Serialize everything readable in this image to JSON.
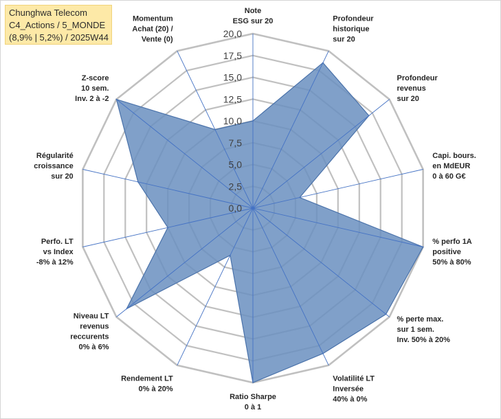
{
  "chart_data": {
    "type": "radar",
    "title_lines": [
      "Chunghwa Telecom",
      "C4_Actions / 5_MONDE",
      "(8,9% | 5,2%) / 2025W44"
    ],
    "rlim": [
      0,
      20
    ],
    "ticks": [
      "0,0",
      "2,5",
      "5,0",
      "7,5",
      "10,0",
      "12,5",
      "15,0",
      "17,5",
      "20,0"
    ],
    "axes": [
      {
        "label": [
          "Note",
          "ESG sur 20"
        ]
      },
      {
        "label": [
          "Profondeur",
          "historique",
          "sur 20"
        ]
      },
      {
        "label": [
          "Profondeur",
          "revenus",
          "sur 20"
        ]
      },
      {
        "label": [
          "Capi. bours.",
          "en MdEUR",
          "0 à 60 G€"
        ]
      },
      {
        "label": [
          "% perfo 1A",
          "positive",
          "50% à 80%"
        ]
      },
      {
        "label": [
          "% perte max.",
          "sur 1 sem.",
          "Inv. 50% à 20%"
        ]
      },
      {
        "label": [
          "Volatilité LT",
          "Inversée",
          "40% à 0%"
        ]
      },
      {
        "label": [
          "Ratio Sharpe",
          "0 à 1"
        ]
      },
      {
        "label": [
          "Rendement LT",
          "0% à 20%"
        ]
      },
      {
        "label": [
          "Niveau LT",
          "revenus",
          "reccurents",
          "0% à 6%"
        ]
      },
      {
        "label": [
          "Perfo. LT",
          "vs Index",
          "-8% à 12%"
        ]
      },
      {
        "label": [
          "Régularité",
          "croissance",
          "sur 20"
        ]
      },
      {
        "label": [
          "Z-score",
          "10 sem.",
          "Inv. 2 à -2"
        ]
      },
      {
        "label": [
          "Momentum",
          "Achat (20) /",
          "Vente (0)"
        ]
      }
    ],
    "series": [
      {
        "name": "Chunghwa Telecom",
        "values": [
          10,
          18.5,
          17,
          5.5,
          20,
          19.5,
          18.5,
          20,
          6,
          18.5,
          10,
          13.5,
          20,
          10
        ]
      }
    ],
    "fill_color": "#6a8fc0",
    "line_color": "#4a72aa",
    "grid_color": "#c0c0c0",
    "spoke_color": "#4472c4"
  }
}
